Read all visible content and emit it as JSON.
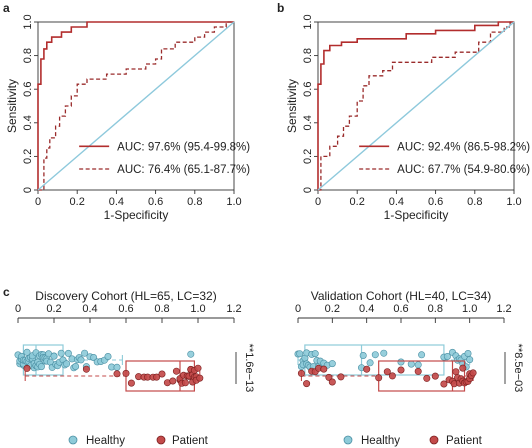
{
  "figure": {
    "panel_labels": [
      "a",
      "b",
      "c"
    ]
  },
  "colors": {
    "solid_curve": "#b22d2d",
    "dashed_curve": "#9a2b2b",
    "diagonal": "#8ec9dc",
    "healthy_fill": "#8ecbd9",
    "healthy_box": "#8ecbd9",
    "patient_fill": "#c34a4a",
    "patient_box": "#c34a4a"
  },
  "chart_data": [
    {
      "type": "line",
      "panel": "a",
      "xlabel": "1-Specificity",
      "ylabel": "Sensitivity",
      "xlim": [
        0,
        1
      ],
      "ylim": [
        0,
        1
      ],
      "xticks": [
        "0",
        "0.2",
        "0.4",
        "0.6",
        "0.8",
        "1.0"
      ],
      "yticks": [
        "0",
        "0.2",
        "0.4",
        "0.6",
        "0.8",
        "1.0"
      ],
      "legend_position": "bottom-right",
      "series": [
        {
          "name": "AUC: 97.6% (95.4-99.8%)",
          "style": "solid",
          "points": [
            [
              0,
              0
            ],
            [
              0,
              0.63
            ],
            [
              0.015,
              0.63
            ],
            [
              0.015,
              0.78
            ],
            [
              0.03,
              0.78
            ],
            [
              0.03,
              0.84
            ],
            [
              0.045,
              0.84
            ],
            [
              0.045,
              0.88
            ],
            [
              0.07,
              0.88
            ],
            [
              0.07,
              0.91
            ],
            [
              0.12,
              0.91
            ],
            [
              0.12,
              0.94
            ],
            [
              0.17,
              0.94
            ],
            [
              0.17,
              0.97
            ],
            [
              0.25,
              0.97
            ],
            [
              0.25,
              1
            ],
            [
              1,
              1
            ]
          ]
        },
        {
          "name": "AUC: 76.4% (65.1-87.7%)",
          "style": "dashed",
          "points": [
            [
              0,
              0
            ],
            [
              0.03,
              0
            ],
            [
              0.03,
              0.19
            ],
            [
              0.045,
              0.19
            ],
            [
              0.045,
              0.25
            ],
            [
              0.06,
              0.25
            ],
            [
              0.06,
              0.31
            ],
            [
              0.09,
              0.31
            ],
            [
              0.09,
              0.38
            ],
            [
              0.11,
              0.38
            ],
            [
              0.11,
              0.44
            ],
            [
              0.14,
              0.44
            ],
            [
              0.14,
              0.5
            ],
            [
              0.17,
              0.5
            ],
            [
              0.17,
              0.56
            ],
            [
              0.2,
              0.56
            ],
            [
              0.2,
              0.63
            ],
            [
              0.25,
              0.63
            ],
            [
              0.25,
              0.66
            ],
            [
              0.35,
              0.66
            ],
            [
              0.35,
              0.69
            ],
            [
              0.45,
              0.69
            ],
            [
              0.45,
              0.72
            ],
            [
              0.55,
              0.72
            ],
            [
              0.55,
              0.75
            ],
            [
              0.6,
              0.75
            ],
            [
              0.6,
              0.78
            ],
            [
              0.63,
              0.78
            ],
            [
              0.63,
              0.84
            ],
            [
              0.7,
              0.84
            ],
            [
              0.7,
              0.88
            ],
            [
              0.8,
              0.88
            ],
            [
              0.8,
              0.91
            ],
            [
              0.85,
              0.91
            ],
            [
              0.85,
              0.94
            ],
            [
              0.9,
              0.94
            ],
            [
              0.9,
              0.97
            ],
            [
              0.96,
              0.97
            ],
            [
              0.96,
              1
            ],
            [
              1,
              1
            ]
          ]
        },
        {
          "name": "",
          "style": "diagonal",
          "points": [
            [
              0,
              0
            ],
            [
              1,
              1
            ]
          ]
        }
      ]
    },
    {
      "type": "line",
      "panel": "b",
      "xlabel": "1-Specificity",
      "ylabel": "Sensitivity",
      "xlim": [
        0,
        1
      ],
      "ylim": [
        0,
        1
      ],
      "xticks": [
        "0",
        "0.2",
        "0.4",
        "0.6",
        "0.8",
        "1.0"
      ],
      "yticks": [
        "0",
        "0.2",
        "0.4",
        "0.6",
        "0.8",
        "1.0"
      ],
      "legend_position": "bottom-right",
      "series": [
        {
          "name": "AUC: 92.4% (86.5-98.2%)",
          "style": "solid",
          "points": [
            [
              0,
              0
            ],
            [
              0,
              0.63
            ],
            [
              0.015,
              0.63
            ],
            [
              0.015,
              0.75
            ],
            [
              0.03,
              0.75
            ],
            [
              0.03,
              0.83
            ],
            [
              0.06,
              0.83
            ],
            [
              0.06,
              0.86
            ],
            [
              0.12,
              0.86
            ],
            [
              0.12,
              0.88
            ],
            [
              0.2,
              0.88
            ],
            [
              0.2,
              0.9
            ],
            [
              0.45,
              0.9
            ],
            [
              0.45,
              0.93
            ],
            [
              0.6,
              0.93
            ],
            [
              0.6,
              0.95
            ],
            [
              0.8,
              0.95
            ],
            [
              0.8,
              0.98
            ],
            [
              0.92,
              0.98
            ],
            [
              0.92,
              1
            ],
            [
              1,
              1
            ]
          ]
        },
        {
          "name": "AUC: 67.7% (54.9-80.6%)",
          "style": "dashed",
          "points": [
            [
              0,
              0
            ],
            [
              0.015,
              0
            ],
            [
              0.015,
              0.2
            ],
            [
              0.06,
              0.2
            ],
            [
              0.06,
              0.26
            ],
            [
              0.1,
              0.26
            ],
            [
              0.1,
              0.32
            ],
            [
              0.13,
              0.32
            ],
            [
              0.13,
              0.38
            ],
            [
              0.16,
              0.38
            ],
            [
              0.16,
              0.44
            ],
            [
              0.2,
              0.44
            ],
            [
              0.2,
              0.53
            ],
            [
              0.23,
              0.53
            ],
            [
              0.23,
              0.62
            ],
            [
              0.26,
              0.62
            ],
            [
              0.26,
              0.68
            ],
            [
              0.33,
              0.68
            ],
            [
              0.33,
              0.71
            ],
            [
              0.38,
              0.71
            ],
            [
              0.38,
              0.76
            ],
            [
              0.58,
              0.76
            ],
            [
              0.58,
              0.79
            ],
            [
              0.7,
              0.79
            ],
            [
              0.7,
              0.82
            ],
            [
              0.82,
              0.82
            ],
            [
              0.82,
              0.88
            ],
            [
              0.88,
              0.88
            ],
            [
              0.88,
              0.94
            ],
            [
              0.95,
              0.94
            ],
            [
              0.95,
              0.97
            ],
            [
              0.98,
              0.97
            ],
            [
              0.98,
              1
            ],
            [
              1,
              1
            ]
          ]
        },
        {
          "name": "",
          "style": "diagonal",
          "points": [
            [
              0,
              0
            ],
            [
              1,
              1
            ]
          ]
        }
      ]
    },
    {
      "type": "scatter",
      "panel": "c",
      "title": "Discovery Cohort (HL=65, LC=32)",
      "xlim": [
        0,
        1.2
      ],
      "xticks": [
        "0",
        "0.2",
        "0.4",
        "0.6",
        "0.8",
        "1.0",
        "1.2"
      ],
      "significance": "**1.6e−13",
      "groups": [
        {
          "name": "Healthy",
          "box": {
            "whisker_low": 0.0,
            "q1": 0.03,
            "median": 0.1,
            "q3": 0.25,
            "whisker_high": 0.58
          },
          "points": [
            0.0,
            0.01,
            0.01,
            0.02,
            0.02,
            0.03,
            0.03,
            0.03,
            0.04,
            0.04,
            0.05,
            0.05,
            0.06,
            0.06,
            0.07,
            0.07,
            0.08,
            0.08,
            0.09,
            0.09,
            0.1,
            0.1,
            0.1,
            0.11,
            0.11,
            0.12,
            0.12,
            0.13,
            0.13,
            0.14,
            0.14,
            0.15,
            0.15,
            0.16,
            0.16,
            0.17,
            0.18,
            0.19,
            0.2,
            0.2,
            0.21,
            0.22,
            0.23,
            0.24,
            0.25,
            0.26,
            0.27,
            0.28,
            0.3,
            0.31,
            0.32,
            0.33,
            0.34,
            0.35,
            0.37,
            0.38,
            0.4,
            0.42,
            0.44,
            0.46,
            0.48,
            0.5,
            0.52,
            0.55,
            0.96
          ]
        },
        {
          "name": "Patient",
          "box": {
            "whisker_low": 0.04,
            "q1": 0.6,
            "median": 0.9,
            "q3": 0.98,
            "whisker_high": 1.01
          },
          "points": [
            0.05,
            0.38,
            0.55,
            0.6,
            0.63,
            0.67,
            0.7,
            0.72,
            0.75,
            0.77,
            0.8,
            0.83,
            0.86,
            0.88,
            0.9,
            0.9,
            0.91,
            0.92,
            0.93,
            0.94,
            0.95,
            0.95,
            0.96,
            0.96,
            0.97,
            0.97,
            0.98,
            0.98,
            0.99,
            0.99,
            1.0,
            1.01
          ]
        }
      ]
    },
    {
      "type": "scatter",
      "panel": "c",
      "title": "Validation Cohort (HL=40, LC=34)",
      "xlim": [
        0,
        1.2
      ],
      "xticks": [
        "0",
        "0.2",
        "0.4",
        "0.6",
        "0.8",
        "1.0",
        "1.2"
      ],
      "significance": "**8.5e−03",
      "groups": [
        {
          "name": "Healthy",
          "box": {
            "whisker_low": 0.0,
            "q1": 0.04,
            "median": 0.37,
            "q3": 0.85,
            "whisker_high": 1.0
          },
          "points": [
            0.0,
            0.01,
            0.02,
            0.03,
            0.03,
            0.04,
            0.05,
            0.05,
            0.06,
            0.07,
            0.08,
            0.09,
            0.1,
            0.11,
            0.12,
            0.13,
            0.15,
            0.17,
            0.2,
            0.37,
            0.38,
            0.42,
            0.45,
            0.5,
            0.6,
            0.66,
            0.7,
            0.72,
            0.85,
            0.87,
            0.9,
            0.92,
            0.93,
            0.94,
            0.95,
            0.96,
            0.97,
            0.98,
            0.99,
            1.0
          ]
        },
        {
          "name": "Patient",
          "box": {
            "whisker_low": 0.02,
            "q1": 0.47,
            "median": 0.9,
            "q3": 0.97,
            "whisker_high": 1.02
          },
          "points": [
            0.02,
            0.05,
            0.08,
            0.1,
            0.12,
            0.15,
            0.18,
            0.2,
            0.25,
            0.4,
            0.47,
            0.52,
            0.55,
            0.6,
            0.7,
            0.75,
            0.8,
            0.85,
            0.88,
            0.9,
            0.91,
            0.92,
            0.93,
            0.94,
            0.95,
            0.96,
            0.96,
            0.97,
            0.98,
            0.99,
            1.0,
            1.0,
            1.01,
            1.02
          ]
        }
      ]
    }
  ],
  "legend_c": {
    "healthy": "Healthy",
    "patient": "Patient"
  }
}
